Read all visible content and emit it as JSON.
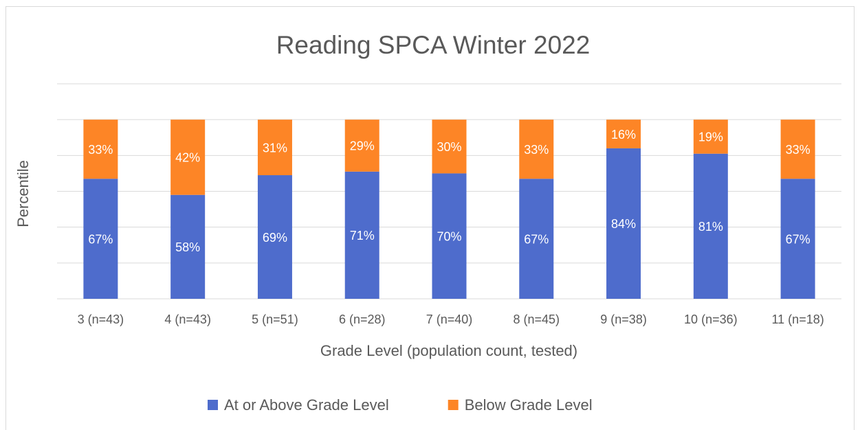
{
  "chart_data": {
    "type": "stacked-bar",
    "title": "Reading SPCA Winter 2022",
    "x_label": "Grade Level (population count, tested)",
    "y_label": "Percentile",
    "categories": [
      "3 (n=43)",
      "4 (n=43)",
      "5 (n=51)",
      "6 (n=28)",
      "7 (n=40)",
      "8 (n=45)",
      "9 (n=38)",
      "10 (n=36)",
      "11 (n=18)"
    ],
    "series": [
      {
        "name": "At or Above Grade Level",
        "color": "#4e6ccc",
        "values": [
          67,
          58,
          69,
          71,
          70,
          67,
          84,
          81,
          67
        ],
        "value_labels": [
          "67%",
          "58%",
          "69%",
          "71%",
          "70%",
          "67%",
          "84%",
          "81%",
          "67%"
        ]
      },
      {
        "name": "Below Grade Level",
        "color": "#fd8526",
        "values": [
          33,
          42,
          31,
          29,
          30,
          33,
          16,
          19,
          33
        ],
        "value_labels": [
          "33%",
          "42%",
          "31%",
          "29%",
          "30%",
          "33%",
          "16%",
          "19%",
          "33%"
        ]
      }
    ],
    "ylim": [
      0,
      120
    ],
    "yticks": [
      0,
      20,
      40,
      60,
      80,
      100,
      120
    ],
    "grid": true,
    "legend": "bottom"
  }
}
